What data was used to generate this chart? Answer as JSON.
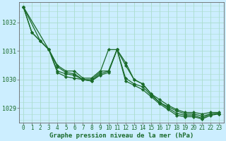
{
  "background_color": "#cceeff",
  "grid_color": "#aaddcc",
  "line_color": "#1a6b2a",
  "marker_color": "#1a6b2a",
  "xlabel": "Graphe pression niveau de la mer (hPa)",
  "xlabel_fontsize": 6.5,
  "xtick_fontsize": 5.5,
  "ytick_fontsize": 6,
  "xlim": [
    -0.5,
    23.5
  ],
  "ylim": [
    1028.5,
    1032.7
  ],
  "yticks": [
    1029,
    1030,
    1031,
    1032
  ],
  "xticks": [
    0,
    1,
    2,
    3,
    4,
    5,
    6,
    7,
    8,
    9,
    10,
    11,
    12,
    13,
    14,
    15,
    16,
    17,
    18,
    19,
    20,
    21,
    22,
    23
  ],
  "lines": [
    {
      "x": [
        0,
        1,
        2,
        3,
        4,
        5,
        6,
        7,
        8,
        9,
        10,
        11,
        12,
        13,
        14,
        15,
        16,
        17,
        18,
        19,
        20,
        21,
        22,
        23
      ],
      "y": [
        1032.55,
        1031.65,
        1031.35,
        1031.05,
        1030.5,
        1030.3,
        1030.3,
        1030.05,
        1030.05,
        1030.3,
        1030.3,
        1031.05,
        1030.6,
        1030.0,
        1029.85,
        1029.5,
        1029.3,
        1029.1,
        1028.95,
        1028.85,
        1028.85,
        1028.8,
        1028.85,
        1028.85
      ]
    },
    {
      "x": [
        0,
        1,
        2,
        3,
        4,
        5,
        6,
        7,
        8,
        9,
        10,
        11,
        12,
        13,
        14,
        15,
        16,
        17,
        18,
        19,
        20,
        21,
        22,
        23
      ],
      "y": [
        1032.55,
        1031.65,
        1031.35,
        1031.05,
        1030.45,
        1030.25,
        1030.2,
        1030.0,
        1030.0,
        1030.25,
        1031.05,
        1031.05,
        1030.5,
        1030.0,
        1029.85,
        1029.5,
        1029.2,
        1029.05,
        1028.9,
        1028.8,
        1028.8,
        1028.72,
        1028.8,
        1028.8
      ]
    },
    {
      "x": [
        0,
        2,
        3,
        4,
        5,
        6,
        7,
        8,
        9,
        10,
        11,
        12,
        13,
        14,
        15,
        16,
        17,
        18,
        19,
        20,
        21,
        22,
        23
      ],
      "y": [
        1032.55,
        1031.35,
        1031.05,
        1030.3,
        1030.2,
        1030.15,
        1030.0,
        1029.95,
        1030.2,
        1030.3,
        1031.05,
        1030.05,
        1029.85,
        1029.75,
        1029.45,
        1029.2,
        1029.0,
        1028.82,
        1028.75,
        1028.75,
        1028.65,
        1028.8,
        1028.82
      ]
    },
    {
      "x": [
        0,
        3,
        4,
        5,
        6,
        7,
        8,
        9,
        10,
        11,
        12,
        13,
        14,
        15,
        16,
        17,
        18,
        19,
        20,
        21,
        22,
        23
      ],
      "y": [
        1032.55,
        1031.05,
        1030.25,
        1030.1,
        1030.05,
        1030.0,
        1029.95,
        1030.15,
        1030.25,
        1031.05,
        1029.95,
        1029.8,
        1029.65,
        1029.4,
        1029.15,
        1028.95,
        1028.75,
        1028.7,
        1028.7,
        1028.62,
        1028.75,
        1028.8
      ]
    }
  ]
}
